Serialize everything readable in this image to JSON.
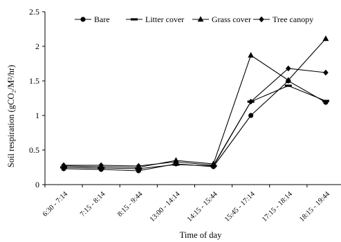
{
  "chart_data": {
    "type": "line",
    "title": "",
    "xlabel": "Time of day",
    "ylabel": "Soil respiration (gCO₂/M²/hr)",
    "ylim": [
      0,
      2.5
    ],
    "yticks": [
      "0",
      "0.5",
      "1",
      "1.5",
      "2",
      "2.5"
    ],
    "categories": [
      "6:30 - 7:14",
      "7:15 - 8:14",
      "8:15 - 9:44",
      "13:00 - 14:14",
      "14:15 - 15:44",
      "15:45 - 17:14",
      "17:15 - 18:14",
      "18:15 - 19:44"
    ],
    "grid": false,
    "legend_position": "top",
    "series": [
      {
        "name": "Bare",
        "marker": "circle",
        "values": [
          0.23,
          0.22,
          0.2,
          0.3,
          0.26,
          1.0,
          1.5,
          1.19
        ]
      },
      {
        "name": "Litter cover",
        "marker": "dash",
        "values": [
          0.25,
          0.24,
          0.23,
          0.29,
          0.27,
          1.2,
          1.43,
          1.21
        ]
      },
      {
        "name": "Grass cover",
        "marker": "triangle",
        "values": [
          0.27,
          0.26,
          0.25,
          0.35,
          0.3,
          1.87,
          1.51,
          2.11
        ]
      },
      {
        "name": "Tree canopy",
        "marker": "diamond",
        "values": [
          0.28,
          0.28,
          0.27,
          0.33,
          0.28,
          1.2,
          1.68,
          1.62
        ]
      }
    ]
  }
}
